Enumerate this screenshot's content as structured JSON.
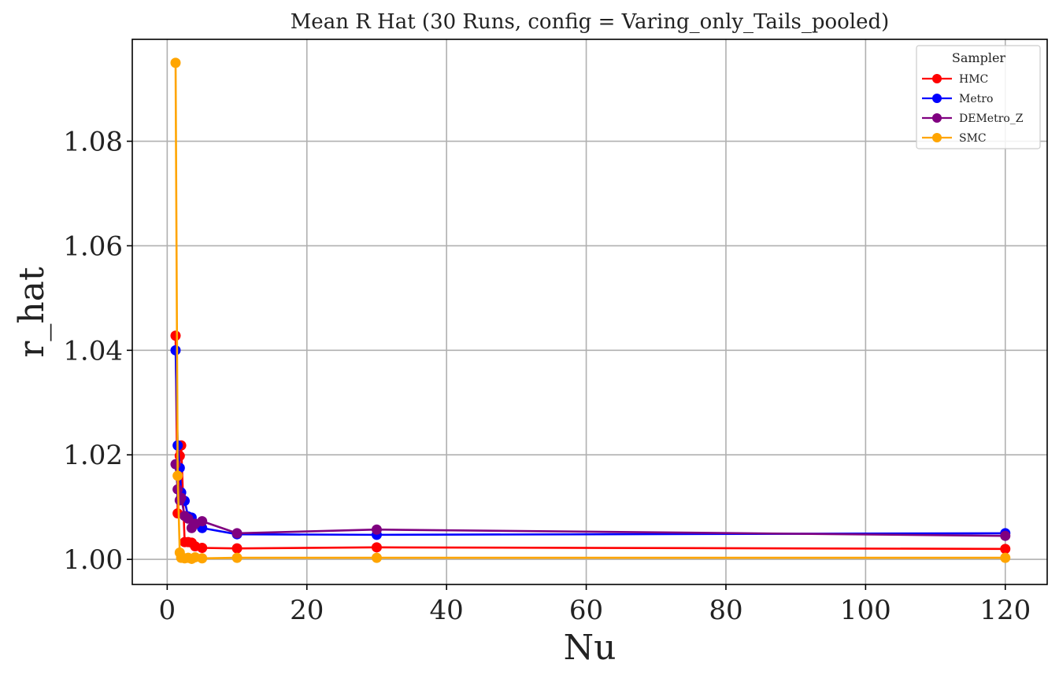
{
  "chart_data": {
    "type": "line",
    "title": "Mean R Hat (30 Runs, config = Varing_only_Tails_pooled)",
    "xlabel": "Nu",
    "ylabel": "r_hat",
    "xlim": [
      -5,
      126
    ],
    "ylim": [
      0.9952,
      1.0995
    ],
    "xticks": [
      0,
      20,
      40,
      60,
      80,
      100,
      120
    ],
    "yticks": [
      1.0,
      1.02,
      1.04,
      1.06,
      1.08
    ],
    "xtick_labels": [
      "0",
      "20",
      "40",
      "60",
      "80",
      "100",
      "120"
    ],
    "ytick_labels": [
      "1.00",
      "1.02",
      "1.04",
      "1.06",
      "1.08"
    ],
    "grid": true,
    "legend": {
      "title": "Sampler",
      "position": "top-right"
    },
    "x": [
      1.2,
      1.5,
      1.8,
      2.0,
      2.5,
      3.0,
      3.5,
      4.0,
      5.0,
      10,
      30,
      120
    ],
    "series": [
      {
        "name": "HMC",
        "color": "#ff0000",
        "values": [
          1.0428,
          1.0088,
          1.0198,
          1.0218,
          1.0033,
          1.0033,
          1.0032,
          1.0025,
          1.0022,
          1.0021,
          1.0023,
          1.002
        ]
      },
      {
        "name": "Metro",
        "color": "#0000ff",
        "values": [
          1.04,
          1.0218,
          1.0175,
          1.0128,
          1.0112,
          1.0082,
          1.008,
          1.0068,
          1.006,
          1.0048,
          1.0047,
          1.005
        ]
      },
      {
        "name": "DEMetro_Z",
        "color": "#800080",
        "values": [
          1.0182,
          1.0134,
          1.0113,
          1.0118,
          1.0083,
          1.0078,
          1.006,
          1.0068,
          1.0073,
          1.005,
          1.0057,
          1.0045
        ]
      },
      {
        "name": "SMC",
        "color": "#ffa500",
        "values": [
          1.095,
          1.016,
          1.0013,
          1.0003,
          1.0002,
          1.0003,
          1.0001,
          1.0004,
          1.0002,
          1.0003,
          1.0003,
          1.0003
        ]
      }
    ]
  }
}
